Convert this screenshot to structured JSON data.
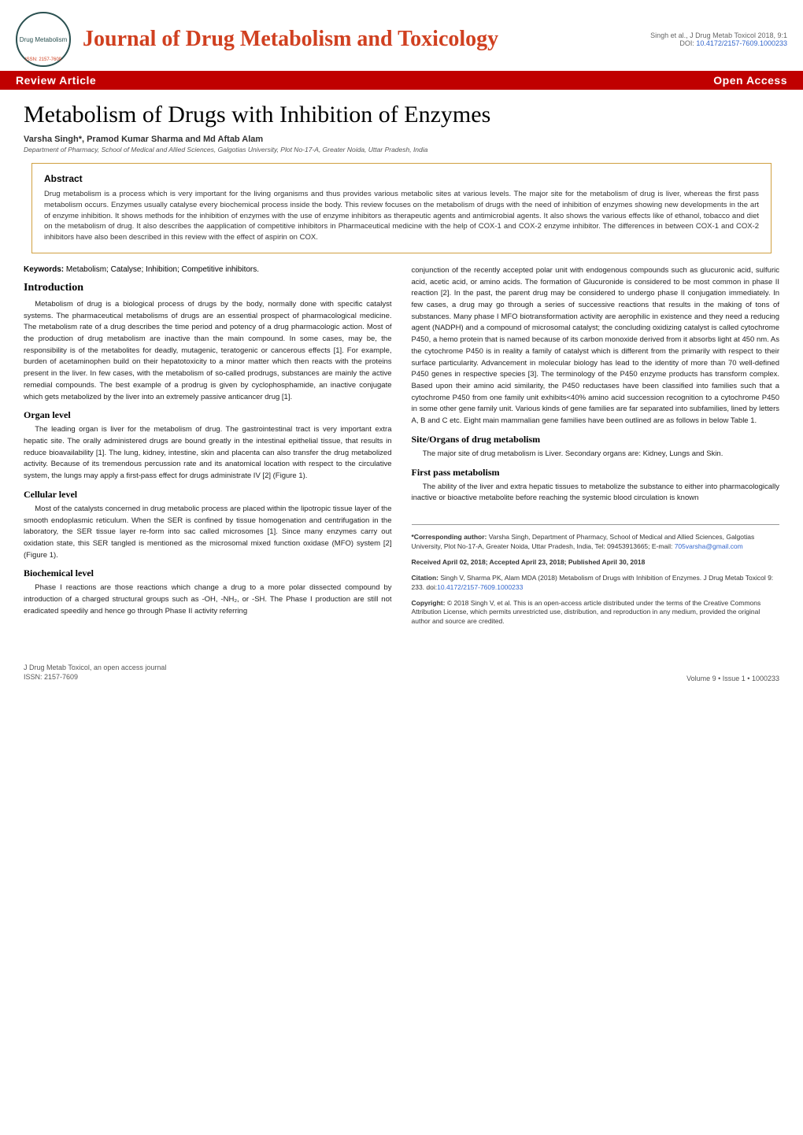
{
  "header": {
    "logo_text": "Journal of Drug Metabolism & Toxicology",
    "logo_issn": "ISSN: 2157-7609",
    "journal_title": "Journal of Drug Metabolism and Toxicology",
    "citation": "Singh et al., J Drug Metab Toxicol 2018, 9:1",
    "doi_label": "DOI: ",
    "doi": "10.4172/2157-7609.1000233"
  },
  "banner": {
    "left": "Review Article",
    "right": "Open Access"
  },
  "article": {
    "title": "Metabolism of Drugs with Inhibition of Enzymes",
    "authors": "Varsha Singh*, Pramod Kumar Sharma and Md Aftab Alam",
    "affiliation": "Department of Pharmacy, School of Medical and Allied Sciences, Galgotias University, Plot No-17-A, Greater Noida, Uttar Pradesh, India"
  },
  "abstract": {
    "heading": "Abstract",
    "text": "Drug metabolism is a process which is very important for the living organisms and thus provides various metabolic sites at various levels. The major site for the metabolism of drug is liver, whereas the first pass metabolism occurs. Enzymes usually catalyse every biochemical process inside the body. This review focuses on the metabolism of drugs with the need of inhibition of enzymes showing new developments in the art of enzyme inhibition. It shows methods for the inhibition of enzymes with the use of enzyme inhibitors as therapeutic agents and antimicrobial agents. It also shows the various effects like of ethanol, tobacco and diet on the metabolism of drug. It also describes the aapplication of competitive inhibitors in Pharmaceutical medicine with the help of COX-1 and COX-2 enzyme inhibitor. The differences in between COX-1 and COX-2 inhibitors have also been described in this review with the effect of aspirin on COX."
  },
  "keywords": {
    "label": "Keywords: ",
    "text": "Metabolism; Catalyse; Inhibition; Competitive inhibitors."
  },
  "sections": {
    "intro_h": "Introduction",
    "intro_p1": "Metabolism of drug is a biological process of drugs by the body, normally done with specific catalyst systems. The pharmaceutical metabolisms of drugs are an essential prospect of pharmacological medicine. The metabolism rate of a drug describes the time period and potency of a drug pharmacologic action. Most of the production of drug metabolism are inactive than the main compound. In some cases, may be, the responsibility is of the metabolites for deadly, mutagenic, teratogenic or cancerous effects [1]. For example, burden of acetaminophen build on their hepatotoxicity to a minor matter which then reacts with the proteins present in the liver. In few cases, with the metabolism of so-called prodrugs, substances are mainly the active remedial compounds. The best example of a prodrug is given by cyclophosphamide, an inactive conjugate which gets metabolized by the liver into an extremely passive anticancer drug [1].",
    "organ_h": "Organ level",
    "organ_p1": "The leading organ is liver for the metabolism of drug. The gastrointestinal tract is very important extra hepatic site. The orally administered drugs are bound greatly in the intestinal epithelial tissue, that results in reduce bioavailability [1]. The lung, kidney, intestine, skin and placenta can also transfer the drug metabolized activity. Because of its tremendous percussion rate and its anatomical location with respect to the circulative system, the lungs may apply a first-pass effect for drugs administrate IV [2] (Figure 1).",
    "cellular_h": "Cellular level",
    "cellular_p1": "Most of the catalysts concerned in drug metabolic process are placed within the lipotropic tissue layer of the smooth endoplasmic reticulum. When the SER is confined by tissue homogenation and centrifugation in the laboratory, the SER tissue layer re-form into sac called microsomes [1]. Since many enzymes carry out oxidation state, this SER tangled is mentioned as the microsomal mixed function oxidase (MFO) system [2] (Figure 1).",
    "biochem_h": "Biochemical level",
    "biochem_p1": "Phase I reactions are those reactions which change a drug to a more polar dissected compound by introduction of a charged structural groups such as -OH, -NH₂, or -SH. The Phase I production are still not eradicated speedily and hence go through Phase II activity referring",
    "col2_p1": "conjunction of the recently accepted polar unit with endogenous compounds such as glucuronic acid, sulfuric acid, acetic acid, or amino acids. The formation of Glucuronide is considered to be most common in phase II reaction [2]. In the past, the parent drug may be considered to undergo phase II conjugation immediately. In few cases, a drug may go through a series of successive reactions that results in the making of tons of substances. Many phase I MFO biotransformation activity are aerophilic in existence and they need a reducing agent (NADPH) and a compound of microsomal catalyst; the concluding oxidizing catalyst is called cytochrome P450, a hemo protein that is named because of its carbon monoxide derived from it absorbs light at 450 nm. As the cytochrome P450 is in reality a family of catalyst which is different from the primarily with respect to their surface particularity. Advancement in molecular biology has lead to the identity of more than 70 well-defined P450 genes in respective species [3]. The terminology of the P450 enzyme products has transform complex. Based upon their amino acid similarity, the P450 reductases have been classified into families such that a cytochrome P450 from one family unit exhibits<40% amino acid succession recognition to a cytochrome P450 in some other gene family unit. Various kinds of gene families are far separated into subfamilies, lined by letters A, B and C etc. Eight main mammalian gene families have been outlined are as follows in below Table 1.",
    "site_h": "Site/Organs of drug metabolism",
    "site_p1": "The major site of drug metabolism is Liver. Secondary organs are: Kidney, Lungs and Skin.",
    "firstpass_h": "First pass metabolism",
    "firstpass_p1": "The ability of the liver and extra hepatic tissues to metabolize the substance to either into pharmacologically inactive or bioactive metabolite before reaching the systemic blood circulation is known"
  },
  "corresponding": {
    "author_label": "*Corresponding author: ",
    "author_text": "Varsha Singh, Department of Pharmacy, School of Medical and Allied Sciences, Galgotias University, Plot No-17-A, Greater Noida, Uttar Pradesh, India, Tel: 09453913665; E-mail: ",
    "email": "705varsha@gmail.com",
    "received": "Received April 02, 2018; Accepted April 23, 2018; Published April 30, 2018",
    "citation_label": "Citation: ",
    "citation_text": "Singh V, Sharma PK, Alam MDA (2018) Metabolism of Drugs with Inhibition of Enzymes. J Drug Metab Toxicol 9: 233. doi:",
    "citation_doi": "10.4172/2157-7609.1000233",
    "copyright_label": "Copyright: ",
    "copyright_text": "© 2018 Singh V, et al. This is an open-access article distributed under the terms of the Creative Commons Attribution License, which permits unrestricted use, distribution, and reproduction in any medium, provided the original author and source are credited."
  },
  "footer": {
    "left_line1": "J Drug Metab Toxicol, an open access journal",
    "left_line2": "ISSN: 2157-7609",
    "right": "Volume 9 • Issue 1 • 1000233"
  },
  "colors": {
    "brand_red": "#c00000",
    "title_orange": "#d04020",
    "link_blue": "#3366cc",
    "abstract_border": "#d0a040"
  }
}
